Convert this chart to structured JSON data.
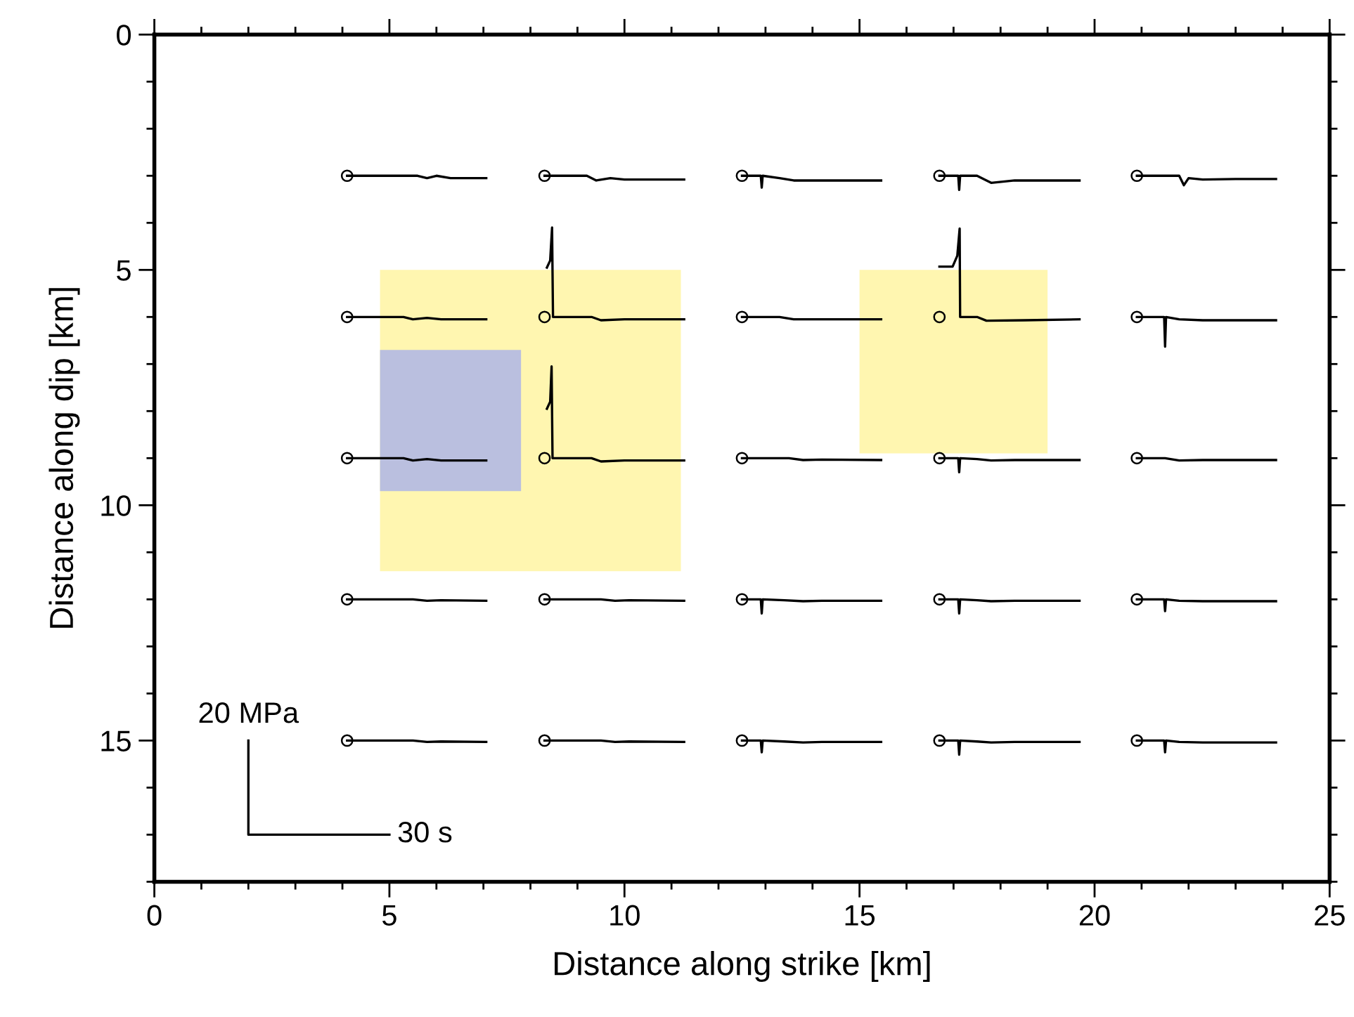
{
  "chart_data": {
    "type": "line",
    "xlabel": "Distance along strike [km]",
    "ylabel": "Distance along dip [km]",
    "xlim": [
      0,
      25
    ],
    "ylim": [
      18,
      0
    ],
    "xticks": [
      0,
      {
        "value": 1,
        "label": null
      },
      {
        "value": 2,
        "label": null
      },
      {
        "value": 3,
        "label": null
      },
      {
        "value": 4,
        "label": null
      },
      5,
      {
        "value": 6,
        "label": null
      },
      {
        "value": 7,
        "label": null
      },
      {
        "value": 8,
        "label": null
      },
      {
        "value": 9,
        "label": null
      },
      10,
      {
        "value": 11,
        "label": null
      },
      {
        "value": 12,
        "label": null
      },
      {
        "value": 13,
        "label": null
      },
      {
        "value": 14,
        "label": null
      },
      15,
      {
        "value": 16,
        "label": null
      },
      {
        "value": 17,
        "label": null
      },
      {
        "value": 18,
        "label": null
      },
      {
        "value": 19,
        "label": null
      },
      20,
      {
        "value": 21,
        "label": null
      },
      {
        "value": 22,
        "label": null
      },
      {
        "value": 23,
        "label": null
      },
      {
        "value": 24,
        "label": null
      },
      25
    ],
    "yticks": [
      0,
      {
        "value": 1,
        "label": null
      },
      {
        "value": 2,
        "label": null
      },
      {
        "value": 3,
        "label": null
      },
      {
        "value": 4,
        "label": null
      },
      5,
      {
        "value": 6,
        "label": null
      },
      {
        "value": 7,
        "label": null
      },
      {
        "value": 8,
        "label": null
      },
      {
        "value": 9,
        "label": null
      },
      10,
      {
        "value": 11,
        "label": null
      },
      {
        "value": 12,
        "label": null
      },
      {
        "value": 13,
        "label": null
      },
      {
        "value": 14,
        "label": null
      },
      15,
      {
        "value": 16,
        "label": null
      },
      {
        "value": 17,
        "label": null
      },
      {
        "value": 18,
        "label": null
      }
    ],
    "grid": false,
    "legend": false,
    "series": [
      {
        "type": "area",
        "color": "#fff6b0",
        "x": [
          4.8,
          11.2,
          11.2,
          4.8
        ],
        "values": [
          5,
          5,
          11.4,
          11.4
        ]
      },
      {
        "type": "area",
        "color": "#fff6b0",
        "x": [
          15.0,
          19.0,
          19.0,
          15.0
        ],
        "values": [
          5,
          5,
          8.9,
          8.9
        ]
      },
      {
        "type": "area",
        "color": "#babfdf",
        "x": [
          4.8,
          7.8,
          7.8,
          4.8
        ],
        "values": [
          6.7,
          6.7,
          9.7,
          9.7
        ]
      },
      {
        "color": "#000000",
        "x": [
          4.1,
          5.6,
          5.8,
          6.0,
          6.3,
          7.06
        ],
        "values": [
          3.0,
          3.0,
          3.05,
          3.0,
          3.05,
          3.05
        ]
      },
      {
        "color": "#000000",
        "x": [
          4.1,
          5.3,
          5.5,
          5.8,
          6.1,
          7.06
        ],
        "values": [
          6.0,
          6.0,
          6.05,
          6.02,
          6.05,
          6.05
        ]
      },
      {
        "color": "#000000",
        "x": [
          4.1,
          5.3,
          5.5,
          5.8,
          6.1,
          7.06
        ],
        "values": [
          9.0,
          9.0,
          9.05,
          9.02,
          9.05,
          9.05
        ]
      },
      {
        "color": "#000000",
        "x": [
          4.1,
          5.5,
          5.8,
          6.1,
          7.06
        ],
        "values": [
          12.0,
          12.0,
          12.03,
          12.02,
          12.03
        ]
      },
      {
        "color": "#000000",
        "x": [
          4.1,
          5.5,
          5.8,
          6.1,
          7.06
        ],
        "values": [
          15.0,
          15.0,
          15.03,
          15.02,
          15.03
        ]
      },
      {
        "color": "#000000",
        "x": [
          8.3,
          9.2,
          9.4,
          9.7,
          10.0,
          11.27
        ],
        "values": [
          3.0,
          3.0,
          3.1,
          3.05,
          3.08,
          3.08
        ]
      },
      {
        "color": "#000000",
        "x": [
          8.35,
          8.42,
          8.46,
          8.48,
          9.3,
          9.5,
          10.0,
          11.27
        ],
        "values": [
          4.95,
          4.8,
          4.1,
          6.0,
          6.0,
          6.07,
          6.05,
          6.05
        ]
      },
      {
        "color": "#000000",
        "x": [
          8.35,
          8.42,
          8.45,
          8.47,
          9.3,
          9.5,
          10.0,
          11.27
        ],
        "values": [
          7.95,
          7.8,
          7.05,
          9.0,
          9.0,
          9.07,
          9.05,
          9.05
        ]
      },
      {
        "color": "#000000",
        "x": [
          8.3,
          9.5,
          9.8,
          10.1,
          11.27
        ],
        "values": [
          12.0,
          12.0,
          12.03,
          12.02,
          12.03
        ]
      },
      {
        "color": "#000000",
        "x": [
          8.3,
          9.5,
          9.8,
          10.1,
          11.27
        ],
        "values": [
          15.0,
          15.0,
          15.03,
          15.02,
          15.03
        ]
      },
      {
        "color": "#000000",
        "x": [
          12.5,
          12.9,
          12.92,
          12.94,
          13.3,
          13.6,
          14.0,
          15.46
        ],
        "values": [
          3.0,
          3.0,
          3.25,
          3.0,
          3.05,
          3.1,
          3.1,
          3.1
        ]
      },
      {
        "color": "#000000",
        "x": [
          12.5,
          13.3,
          13.6,
          14.0,
          15.46
        ],
        "values": [
          6.0,
          6.0,
          6.05,
          6.05,
          6.05
        ]
      },
      {
        "color": "#000000",
        "x": [
          12.5,
          13.5,
          13.8,
          14.2,
          15.46
        ],
        "values": [
          9.0,
          9.0,
          9.04,
          9.03,
          9.04
        ]
      },
      {
        "color": "#000000",
        "x": [
          12.5,
          12.9,
          12.92,
          12.94,
          13.4,
          13.8,
          14.2,
          15.46
        ],
        "values": [
          12.0,
          12.0,
          12.3,
          12.0,
          12.02,
          12.04,
          12.03,
          12.03
        ]
      },
      {
        "color": "#000000",
        "x": [
          12.5,
          12.9,
          12.92,
          12.94,
          13.4,
          13.8,
          14.2,
          15.46
        ],
        "values": [
          15.0,
          15.0,
          15.25,
          15.0,
          15.02,
          15.04,
          15.03,
          15.03
        ]
      },
      {
        "color": "#000000",
        "x": [
          16.7,
          17.1,
          17.12,
          17.14,
          17.5,
          17.8,
          18.3,
          19.68
        ],
        "values": [
          3.0,
          3.0,
          3.3,
          3.0,
          3.0,
          3.15,
          3.1,
          3.1
        ]
      },
      {
        "color": "#000000",
        "x": [
          16.7,
          16.98,
          17.08,
          17.13,
          17.14,
          17.5,
          17.7,
          18.5,
          19.68
        ],
        "values": [
          4.93,
          4.93,
          4.7,
          4.12,
          6.0,
          6.0,
          6.08,
          6.07,
          6.05
        ]
      },
      {
        "color": "#000000",
        "x": [
          16.7,
          17.1,
          17.12,
          17.14,
          17.5,
          17.8,
          18.3,
          19.68
        ],
        "values": [
          9.0,
          9.0,
          9.3,
          9.0,
          9.02,
          9.05,
          9.04,
          9.04
        ]
      },
      {
        "color": "#000000",
        "x": [
          16.7,
          17.1,
          17.12,
          17.14,
          17.5,
          17.8,
          18.3,
          19.68
        ],
        "values": [
          12.0,
          12.0,
          12.3,
          12.0,
          12.02,
          12.04,
          12.03,
          12.03
        ]
      },
      {
        "color": "#000000",
        "x": [
          16.7,
          17.1,
          17.12,
          17.14,
          17.5,
          17.8,
          18.3,
          19.68
        ],
        "values": [
          15.0,
          15.0,
          15.3,
          15.0,
          15.02,
          15.04,
          15.03,
          15.03
        ]
      },
      {
        "color": "#000000",
        "x": [
          20.9,
          21.8,
          21.9,
          22.0,
          22.3,
          23.0,
          23.86
        ],
        "values": [
          3.0,
          3.0,
          3.2,
          3.05,
          3.08,
          3.07,
          3.07
        ]
      },
      {
        "color": "#000000",
        "x": [
          20.9,
          21.48,
          21.5,
          21.52,
          21.8,
          22.3,
          23.86
        ],
        "values": [
          6.0,
          6.0,
          6.63,
          6.0,
          6.05,
          6.07,
          6.07
        ]
      },
      {
        "color": "#000000",
        "x": [
          20.9,
          21.5,
          21.8,
          22.3,
          23.86
        ],
        "values": [
          9.0,
          9.0,
          9.05,
          9.04,
          9.04
        ]
      },
      {
        "color": "#000000",
        "x": [
          20.9,
          21.48,
          21.5,
          21.52,
          21.8,
          22.3,
          23.86
        ],
        "values": [
          12.0,
          12.0,
          12.25,
          12.0,
          12.03,
          12.04,
          12.04
        ]
      },
      {
        "color": "#000000",
        "x": [
          20.9,
          21.48,
          21.5,
          21.52,
          21.8,
          22.3,
          23.86
        ],
        "values": [
          15.0,
          15.0,
          15.25,
          15.0,
          15.03,
          15.04,
          15.04
        ]
      },
      {
        "type": "scatter",
        "color": "#000000",
        "marker": "circle",
        "x": [
          4.1,
          8.3,
          12.5,
          16.7,
          20.9,
          4.1,
          8.3,
          12.5,
          16.7,
          20.9,
          4.1,
          8.3,
          12.5,
          16.7,
          20.9,
          4.1,
          8.3,
          12.5,
          16.7,
          20.9,
          4.1,
          8.3,
          12.5,
          16.7,
          20.9
        ],
        "values": [
          3,
          3,
          3,
          3,
          3,
          6,
          6,
          6,
          6,
          6,
          9,
          9,
          9,
          9,
          9,
          12,
          12,
          12,
          12,
          12,
          15,
          15,
          15,
          15,
          15
        ]
      },
      {
        "color": "#000000",
        "x": [
          2,
          2,
          5
        ],
        "values": [
          15,
          17,
          17
        ]
      }
    ],
    "annotations": [
      {
        "text": "20 MPa",
        "x": 2,
        "y": 15
      },
      {
        "text": "30 s",
        "x": 5,
        "y": 17
      }
    ]
  }
}
